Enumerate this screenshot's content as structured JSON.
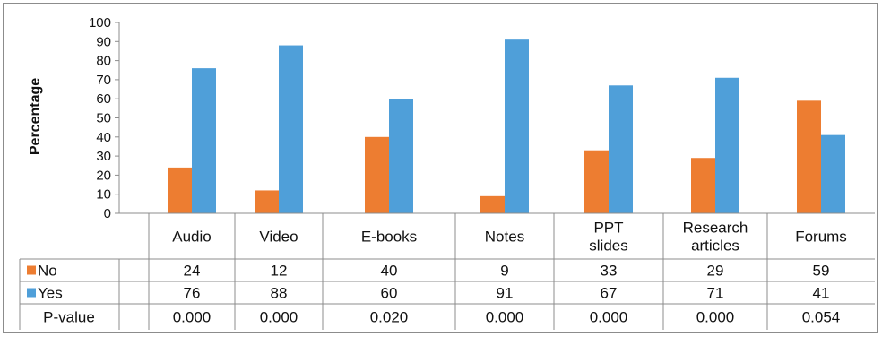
{
  "chart_data": {
    "type": "bar",
    "title": "",
    "xlabel": "",
    "ylabel": "Percentage",
    "ylim": [
      0,
      100
    ],
    "yticks": [
      0,
      10,
      20,
      30,
      40,
      50,
      60,
      70,
      80,
      90,
      100
    ],
    "grid": false,
    "legend_placement": "in data table (left of rows)",
    "categories": [
      [
        "Audio"
      ],
      [
        "Video"
      ],
      [
        "E-books"
      ],
      [
        "Notes"
      ],
      [
        "PPT",
        "slides"
      ],
      [
        "Research",
        "articles"
      ],
      [
        "Forums"
      ]
    ],
    "series": [
      {
        "name": "No",
        "color": "#ed7d31",
        "values": [
          24,
          12,
          40,
          9,
          33,
          29,
          59
        ]
      },
      {
        "name": "Yes",
        "color": "#4f9fd9",
        "values": [
          76,
          88,
          60,
          91,
          67,
          71,
          41
        ]
      }
    ],
    "table_extra_row": {
      "label": "P-value",
      "values": [
        "0.000",
        "0.000",
        "0.020",
        "0.000",
        "0.000",
        "0.000",
        "0.054"
      ]
    }
  }
}
